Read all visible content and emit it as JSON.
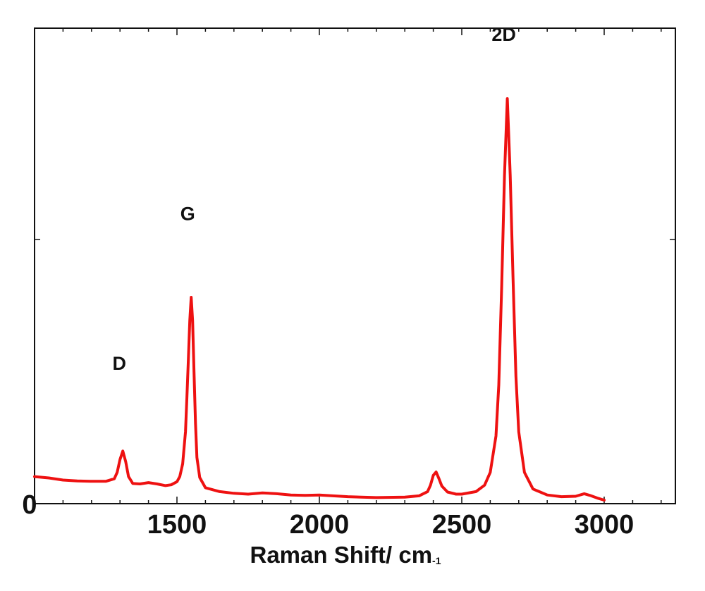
{
  "chart_data": {
    "type": "line",
    "title": "",
    "xlabel": "Raman Shift/ cm",
    "xlabel_superscript": "-1",
    "ylabel": "",
    "xlim": [
      1000,
      3250
    ],
    "ylim": [
      0,
      110
    ],
    "grid": false,
    "y_tick_label": "0",
    "x_ticks": [
      1500,
      2000,
      2500,
      3000
    ],
    "x_tick_labels": [
      "1500",
      "2000",
      "2500",
      "3000"
    ],
    "series": [
      {
        "color": "#ee1111",
        "x": [
          1000,
          1050,
          1100,
          1150,
          1200,
          1250,
          1280,
          1290,
          1300,
          1310,
          1320,
          1330,
          1345,
          1370,
          1400,
          1430,
          1460,
          1480,
          1500,
          1510,
          1520,
          1530,
          1535,
          1540,
          1545,
          1550,
          1555,
          1560,
          1565,
          1570,
          1580,
          1600,
          1650,
          1700,
          1750,
          1800,
          1850,
          1900,
          1950,
          2000,
          2100,
          2200,
          2300,
          2350,
          2380,
          2390,
          2400,
          2410,
          2420,
          2430,
          2450,
          2480,
          2500,
          2550,
          2580,
          2600,
          2620,
          2630,
          2640,
          2650,
          2655,
          2660,
          2665,
          2670,
          2680,
          2690,
          2700,
          2720,
          2750,
          2800,
          2850,
          2900,
          2930,
          2950,
          2980,
          3000
        ],
        "values": [
          5.5,
          5.2,
          4.7,
          4.5,
          4.4,
          4.4,
          5.0,
          6.5,
          9.5,
          11.5,
          9.0,
          5.5,
          3.9,
          3.8,
          4.1,
          3.8,
          3.4,
          3.6,
          4.3,
          5.5,
          8.5,
          16.0,
          24.0,
          33.0,
          42.0,
          47.5,
          42.0,
          30.0,
          18.0,
          10.0,
          5.3,
          2.9,
          2.0,
          1.6,
          1.4,
          1.7,
          1.5,
          1.2,
          1.1,
          1.2,
          0.8,
          0.6,
          0.7,
          1.0,
          2.0,
          3.5,
          5.8,
          6.6,
          5.0,
          3.3,
          1.9,
          1.4,
          1.4,
          2.0,
          3.5,
          6.5,
          15.0,
          27.0,
          50.0,
          76.0,
          85.0,
          94.0,
          85.0,
          76.0,
          52.0,
          29.0,
          16.0,
          6.5,
          2.6,
          1.2,
          0.8,
          0.9,
          1.5,
          1.1,
          0.4,
          0.0
        ]
      }
    ],
    "annotations": [
      {
        "text": "D",
        "x": 1310,
        "y": 32
      },
      {
        "text": "G",
        "x": 1550,
        "y": 67
      },
      {
        "text": "2D",
        "x": 2660,
        "y": 109
      }
    ]
  }
}
